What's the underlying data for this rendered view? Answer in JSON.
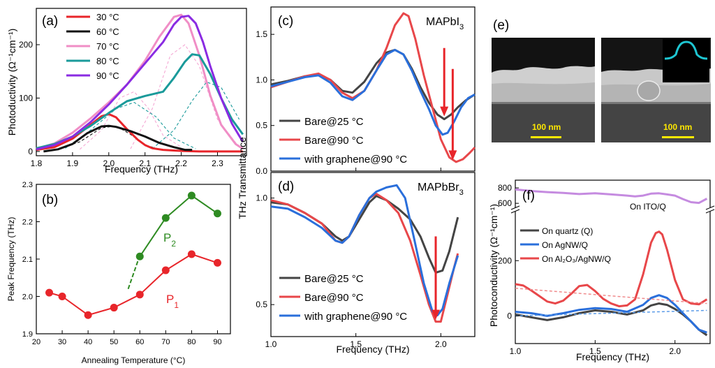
{
  "chart_data": [
    {
      "panel": "(a)",
      "type": "line",
      "xlabel": "Frequency (THz)",
      "ylabel": "Photoductivity (Ω⁻¹cm⁻¹)",
      "xlim": [
        1.8,
        2.38
      ],
      "ylim": [
        -8,
        268
      ],
      "xticks": [
        "1.8",
        "1.9",
        "2.0",
        "2.1",
        "2.2",
        "2.3"
      ],
      "yticks": [
        "0",
        "100",
        "200"
      ],
      "legend_position": "top-left",
      "series": [
        {
          "name": "30 °C",
          "color": "#e8252a",
          "x": [
            1.8,
            1.85,
            1.9,
            1.95,
            1.98,
            2.0,
            2.02,
            2.05,
            2.08,
            2.1,
            2.12,
            2.15,
            2.2,
            2.25,
            2.3,
            2.37
          ],
          "y": [
            3,
            8,
            24,
            50,
            66,
            70,
            64,
            42,
            22,
            12,
            6,
            3,
            1,
            0,
            0,
            0
          ]
        },
        {
          "name": "60 °C",
          "color": "#111111",
          "x": [
            1.82,
            1.86,
            1.9,
            1.94,
            1.98,
            2.0,
            2.02,
            2.06,
            2.1,
            2.14,
            2.18,
            2.21,
            2.23
          ],
          "y": [
            0,
            4,
            14,
            34,
            47,
            48,
            46,
            38,
            28,
            16,
            8,
            3,
            3
          ]
        },
        {
          "name": "70 °C",
          "color": "#f08ec6",
          "x": [
            1.8,
            1.85,
            1.9,
            1.95,
            2.0,
            2.05,
            2.1,
            2.14,
            2.18,
            2.2,
            2.22,
            2.25,
            2.28,
            2.31,
            2.35,
            2.37
          ],
          "y": [
            5,
            15,
            35,
            62,
            92,
            125,
            170,
            215,
            252,
            256,
            240,
            180,
            105,
            50,
            14,
            5
          ]
        },
        {
          "name": "80 °C",
          "color": "#1a9a9a",
          "x": [
            1.8,
            1.85,
            1.9,
            1.95,
            2.0,
            2.05,
            2.1,
            2.15,
            2.18,
            2.21,
            2.23,
            2.25,
            2.28,
            2.31,
            2.34,
            2.37
          ],
          "y": [
            6,
            14,
            28,
            48,
            72,
            94,
            104,
            112,
            138,
            168,
            182,
            180,
            145,
            100,
            60,
            32
          ]
        },
        {
          "name": "90 °C",
          "color": "#8a2be2",
          "x": [
            1.8,
            1.85,
            1.9,
            1.95,
            2.0,
            2.05,
            2.1,
            2.15,
            2.18,
            2.2,
            2.22,
            2.24,
            2.26,
            2.28,
            2.31,
            2.34,
            2.37
          ],
          "y": [
            4,
            12,
            28,
            55,
            88,
            125,
            165,
            205,
            238,
            252,
            254,
            240,
            205,
            160,
            100,
            52,
            18
          ]
        }
      ]
    },
    {
      "panel": "(b)",
      "type": "scatter",
      "xlabel": "Annealing Temperature (°C)",
      "ylabel": "Peak Frequency (THz)",
      "xlim": [
        20,
        95
      ],
      "ylim": [
        1.9,
        2.3
      ],
      "xticks": [
        "20",
        "30",
        "40",
        "50",
        "60",
        "70",
        "80",
        "90"
      ],
      "yticks": [
        "1.9",
        "2.0",
        "2.1",
        "2.2",
        "2.3"
      ],
      "annotations": [
        {
          "text": "P",
          "sub": "2"
        },
        {
          "text": "P",
          "sub": "1"
        }
      ],
      "series": [
        {
          "name": "P1",
          "color": "#e8252a",
          "x": [
            25,
            30,
            40,
            50,
            60,
            70,
            80,
            90
          ],
          "y": [
            2.01,
            2.0,
            1.95,
            1.97,
            2.005,
            2.07,
            2.113,
            2.09
          ]
        },
        {
          "name": "P2",
          "color": "#2e8b22",
          "x": [
            60,
            70,
            80,
            90
          ],
          "y": [
            2.107,
            2.21,
            2.27,
            2.222
          ]
        }
      ]
    },
    {
      "panel": "(c)",
      "type": "line",
      "title": "MAPbI",
      "title_sub": "3",
      "ylabel": "THz Transmittance",
      "xlim": [
        1.0,
        2.2
      ],
      "ylim": [
        0.0,
        1.8
      ],
      "yticks": [
        "0.0",
        "0.5",
        "1.0",
        "1.5"
      ],
      "legend_position": "bottom-left",
      "series": [
        {
          "name": "Bare@25 °C",
          "color": "#444444",
          "x": [
            1.0,
            1.1,
            1.2,
            1.28,
            1.35,
            1.42,
            1.48,
            1.55,
            1.62,
            1.68,
            1.73,
            1.78,
            1.83,
            1.88,
            1.93,
            1.98,
            2.02,
            2.06,
            2.1,
            2.15,
            2.2
          ],
          "y": [
            0.95,
            0.99,
            1.04,
            1.06,
            1.0,
            0.88,
            0.86,
            0.98,
            1.18,
            1.3,
            1.33,
            1.28,
            1.12,
            0.92,
            0.75,
            0.62,
            0.57,
            0.62,
            0.7,
            0.78,
            0.84
          ]
        },
        {
          "name": "Bare@90 °C",
          "color": "#e8474a",
          "x": [
            1.0,
            1.1,
            1.2,
            1.28,
            1.35,
            1.42,
            1.48,
            1.55,
            1.62,
            1.68,
            1.73,
            1.78,
            1.81,
            1.85,
            1.9,
            1.95,
            2.0,
            2.05,
            2.09,
            2.13,
            2.17,
            2.2
          ],
          "y": [
            0.92,
            0.98,
            1.04,
            1.07,
            1.0,
            0.86,
            0.8,
            0.88,
            1.1,
            1.35,
            1.6,
            1.73,
            1.7,
            1.45,
            1.05,
            0.7,
            0.35,
            0.15,
            0.1,
            0.13,
            0.2,
            0.26
          ]
        },
        {
          "name": "with graphene@90 °C",
          "color": "#2a6fdb",
          "x": [
            1.0,
            1.1,
            1.2,
            1.28,
            1.35,
            1.42,
            1.48,
            1.55,
            1.62,
            1.68,
            1.73,
            1.78,
            1.83,
            1.88,
            1.93,
            1.97,
            2.01,
            2.04,
            2.08,
            2.12,
            2.16,
            2.2
          ],
          "y": [
            0.93,
            0.98,
            1.03,
            1.05,
            0.97,
            0.82,
            0.78,
            0.88,
            1.1,
            1.28,
            1.33,
            1.28,
            1.1,
            0.88,
            0.68,
            0.5,
            0.4,
            0.42,
            0.55,
            0.7,
            0.8,
            0.84
          ]
        }
      ]
    },
    {
      "panel": "(d)",
      "type": "line",
      "title": "MAPbBr",
      "title_sub": "3",
      "xlabel": "Frequency (THz)",
      "xlim": [
        1.0,
        2.2
      ],
      "ylim": [
        0.35,
        1.12
      ],
      "xticks": [
        "1.0",
        "1.5",
        "2.0"
      ],
      "yticks": [
        "0.5",
        "1.0"
      ],
      "legend_position": "bottom-left",
      "series": [
        {
          "name": "Bare@25 °C",
          "color": "#444444",
          "x": [
            1.0,
            1.1,
            1.2,
            1.3,
            1.38,
            1.42,
            1.46,
            1.52,
            1.58,
            1.62,
            1.68,
            1.75,
            1.82,
            1.88,
            1.93,
            1.97,
            2.01,
            2.05,
            2.1
          ],
          "y": [
            0.98,
            0.97,
            0.93,
            0.88,
            0.82,
            0.8,
            0.82,
            0.9,
            0.98,
            1.01,
            0.99,
            0.95,
            0.9,
            0.82,
            0.72,
            0.65,
            0.66,
            0.75,
            0.91
          ]
        },
        {
          "name": "Bare@90 °C",
          "color": "#e8474a",
          "x": [
            1.0,
            1.1,
            1.2,
            1.3,
            1.38,
            1.42,
            1.46,
            1.52,
            1.58,
            1.62,
            1.68,
            1.75,
            1.82,
            1.88,
            1.93,
            1.97,
            2.0,
            2.04,
            2.08,
            2.1
          ],
          "y": [
            0.99,
            0.97,
            0.93,
            0.88,
            0.8,
            0.79,
            0.82,
            0.92,
            1.0,
            1.02,
            0.99,
            0.93,
            0.8,
            0.64,
            0.5,
            0.42,
            0.42,
            0.55,
            0.68,
            0.74
          ]
        },
        {
          "name": "with graphene@90 °C",
          "color": "#2a6fdb",
          "x": [
            1.0,
            1.1,
            1.2,
            1.3,
            1.38,
            1.42,
            1.46,
            1.52,
            1.58,
            1.62,
            1.68,
            1.74,
            1.79,
            1.84,
            1.9,
            1.95,
            1.98,
            2.01,
            2.05,
            2.1
          ],
          "y": [
            0.96,
            0.95,
            0.91,
            0.86,
            0.8,
            0.79,
            0.82,
            0.92,
            1.0,
            1.03,
            1.05,
            1.06,
            1.0,
            0.82,
            0.6,
            0.47,
            0.45,
            0.48,
            0.6,
            0.73
          ]
        }
      ]
    },
    {
      "panel": "(f)",
      "type": "line",
      "xlabel": "Frequency (THz)",
      "ylabel": "Photoconductivity (Ω⁻¹cm⁻¹)",
      "xlim": [
        1.0,
        2.22
      ],
      "ylim_lower": [
        -100,
        380
      ],
      "ylim_upper": [
        520,
        900
      ],
      "xticks": [
        "1.0",
        "1.5",
        "2.0"
      ],
      "yticks_lower": [
        "0",
        "200"
      ],
      "yticks_upper": [
        "600",
        "800"
      ],
      "legend_position": "left",
      "annotations": [
        {
          "text": "On ITO/Q"
        }
      ],
      "series": [
        {
          "name": "On quartz (Q)",
          "color": "#444444",
          "x": [
            1.0,
            1.1,
            1.2,
            1.3,
            1.4,
            1.5,
            1.6,
            1.7,
            1.8,
            1.85,
            1.9,
            1.95,
            2.0,
            2.05,
            2.1,
            2.15,
            2.2
          ],
          "y": [
            5,
            -5,
            -15,
            -5,
            10,
            20,
            15,
            5,
            20,
            38,
            45,
            40,
            25,
            5,
            -20,
            -50,
            -70
          ]
        },
        {
          "name": "On AgNW/Q",
          "color": "#2a6fdb",
          "x": [
            1.0,
            1.1,
            1.2,
            1.3,
            1.4,
            1.5,
            1.6,
            1.7,
            1.8,
            1.85,
            1.9,
            1.95,
            2.0,
            2.05,
            2.1,
            2.15,
            2.2
          ],
          "y": [
            15,
            10,
            0,
            10,
            22,
            28,
            25,
            15,
            40,
            65,
            75,
            65,
            40,
            10,
            -20,
            -50,
            -60
          ]
        },
        {
          "name": "On Al₂O₃/AgNW/Q",
          "color": "#e8474a",
          "x": [
            1.0,
            1.05,
            1.1,
            1.15,
            1.2,
            1.25,
            1.3,
            1.35,
            1.4,
            1.45,
            1.5,
            1.55,
            1.6,
            1.65,
            1.7,
            1.75,
            1.8,
            1.85,
            1.88,
            1.9,
            1.92,
            1.95,
            2.0,
            2.05,
            2.1,
            2.15,
            2.2
          ],
          "y": [
            115,
            110,
            92,
            72,
            52,
            45,
            55,
            80,
            108,
            112,
            90,
            62,
            45,
            35,
            38,
            60,
            150,
            265,
            300,
            305,
            295,
            240,
            130,
            60,
            45,
            42,
            60
          ]
        },
        {
          "name": "On ITO/Q",
          "color": "#c58be0",
          "x": [
            1.0,
            1.05,
            1.1,
            1.2,
            1.3,
            1.4,
            1.5,
            1.6,
            1.7,
            1.75,
            1.8,
            1.85,
            1.9,
            1.95,
            2.0,
            2.05,
            2.1,
            2.15,
            2.2
          ],
          "y": [
            780,
            770,
            760,
            745,
            735,
            720,
            730,
            715,
            700,
            690,
            700,
            725,
            730,
            715,
            700,
            655,
            615,
            605,
            660
          ]
        },
        {
          "name": "fit-red",
          "color": "#f08a8c",
          "dash": true,
          "x": [
            1.0,
            2.2
          ],
          "y": [
            100,
            45
          ]
        },
        {
          "name": "fit-blue",
          "color": "#5b9be8",
          "dash": true,
          "x": [
            1.0,
            2.2
          ],
          "y": [
            0,
            20
          ]
        }
      ]
    }
  ],
  "panel_e": {
    "label": "(e)",
    "scalebar_left": "100 nm",
    "scalebar_right": "100 nm"
  }
}
